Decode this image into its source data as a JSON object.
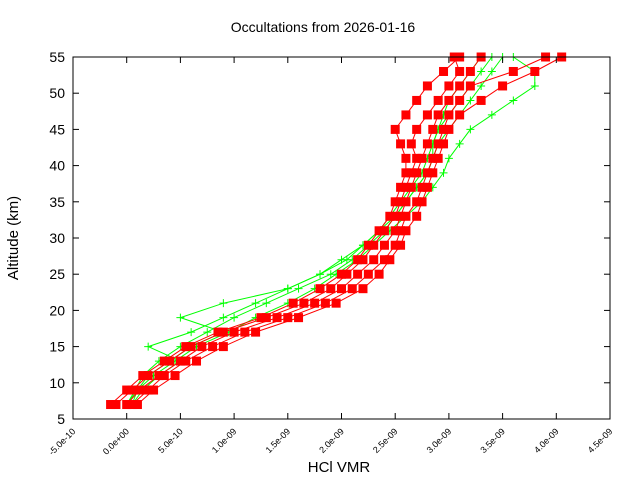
{
  "chart_data": {
    "type": "line",
    "title": "Occultations from 2026-01-16",
    "xlabel": "HCl VMR",
    "ylabel": "Altitude (km)",
    "xlim": [
      -5e-10,
      4.5e-09
    ],
    "ylim": [
      5,
      55
    ],
    "xticks": [
      "-5.0e-10",
      "0.0e+00",
      "5.0e-10",
      "1.0e-09",
      "1.5e-09",
      "2.0e-09",
      "2.5e-09",
      "3.0e-09",
      "3.5e-09",
      "4.0e-09",
      "4.5e-09"
    ],
    "xtick_values": [
      -5e-10,
      0,
      5e-10,
      1e-09,
      1.5e-09,
      2e-09,
      2.5e-09,
      3e-09,
      3.5e-09,
      4e-09,
      4.5e-09
    ],
    "yticks": [
      5,
      10,
      15,
      20,
      25,
      30,
      35,
      40,
      45,
      50,
      55
    ],
    "grid": false,
    "legend": "none",
    "altitudes": [
      7,
      9,
      11,
      13,
      15,
      17,
      19,
      21,
      23,
      25,
      27,
      29,
      31,
      33,
      35,
      37,
      39,
      41,
      43,
      45,
      47,
      49,
      51,
      53,
      55
    ],
    "series_groups": [
      {
        "color": "#00ff00",
        "marker": "plus",
        "profiles": [
          [
            0.0,
            8e-11,
            1.5e-10,
            3e-10,
            5e-10,
            7.5e-10,
            1e-09,
            1.3e-09,
            1.6e-09,
            1.9e-09,
            2.1e-09,
            2.25e-09,
            2.4e-09,
            2.5e-09,
            2.6e-09,
            2.7e-09,
            2.8e-09,
            2.85e-09,
            2.9e-09,
            3e-09,
            3.1e-09,
            3.2e-09,
            3.3e-09,
            3.4e-09,
            3.5e-09
          ],
          [
            5e-11,
            1e-10,
            2e-10,
            4e-10,
            6e-10,
            9e-10,
            5e-10,
            9e-10,
            1.5e-09,
            1.8e-09,
            2e-09,
            2.2e-09,
            2.35e-09,
            2.45e-09,
            2.55e-09,
            2.65e-09,
            2.75e-09,
            2.8e-09,
            2.85e-09,
            2.9e-09,
            3e-09,
            3.1e-09,
            3.2e-09,
            3.3e-09,
            3.4e-09
          ],
          [
            0.0,
            1e-10,
            2.5e-10,
            4.5e-10,
            6.5e-10,
            9.5e-10,
            1.2e-09,
            1.5e-09,
            1.75e-09,
            1.95e-09,
            2.15e-09,
            2.3e-09,
            2.45e-09,
            2.6e-09,
            2.75e-09,
            2.85e-09,
            2.95e-09,
            3e-09,
            3.1e-09,
            3.2e-09,
            3.4e-09,
            3.6e-09,
            3.8e-09,
            3.8e-09,
            3.6e-09
          ],
          [
            5e-11,
            1.5e-10,
            3e-10,
            5e-10,
            2e-10,
            6e-10,
            9e-10,
            1.2e-09,
            1.5e-09,
            1.8e-09,
            2.05e-09,
            2.2e-09,
            2.35e-09,
            2.5e-09,
            2.6e-09,
            2.7e-09,
            2.8e-09,
            2.85e-09,
            2.85e-09,
            2.9e-09,
            2.95e-09,
            3e-09,
            3.1e-09,
            3.2e-09,
            3.3e-09
          ]
        ]
      },
      {
        "color": "#ff0000",
        "marker": "square",
        "profiles": [
          [
            0.0,
            1.2e-10,
            3e-10,
            5e-10,
            7e-10,
            1e-09,
            1.4e-09,
            1.75e-09,
            2e-09,
            2.15e-09,
            2.3e-09,
            2.4e-09,
            2.5e-09,
            2.55e-09,
            2.6e-09,
            2.65e-09,
            2.7e-09,
            2.75e-09,
            2.8e-09,
            2.85e-09,
            2.9e-09,
            3e-09,
            3.1e-09,
            3.2e-09,
            3.3e-09
          ],
          [
            -1e-10,
            5e-11,
            2e-10,
            4e-10,
            6e-10,
            9e-10,
            1.3e-09,
            1.65e-09,
            1.9e-09,
            2.05e-09,
            2.2e-09,
            2.3e-09,
            2.4e-09,
            2.5e-09,
            2.55e-09,
            2.6e-09,
            2.65e-09,
            2.7e-09,
            2.65e-09,
            2.7e-09,
            2.8e-09,
            2.9e-09,
            3e-09,
            3.1e-09,
            3.05e-09
          ],
          [
            5e-11,
            2e-10,
            3.5e-10,
            5.5e-10,
            8e-10,
            1.1e-09,
            1.5e-09,
            1.85e-09,
            2.1e-09,
            2.25e-09,
            2.4e-09,
            2.5e-09,
            2.55e-09,
            2.6e-09,
            2.7e-09,
            2.75e-09,
            2.8e-09,
            2.85e-09,
            2.9e-09,
            2.95e-09,
            3e-09,
            3.1e-09,
            3.2e-09,
            3.6e-09,
            3.9e-09
          ],
          [
            -1.5e-10,
            0.0,
            1.5e-10,
            3.5e-10,
            5.5e-10,
            8.5e-10,
            1.25e-09,
            1.55e-09,
            1.8e-09,
            2e-09,
            2.15e-09,
            2.25e-09,
            2.35e-09,
            2.45e-09,
            2.5e-09,
            2.55e-09,
            2.6e-09,
            2.6e-09,
            2.55e-09,
            2.5e-09,
            2.6e-09,
            2.7e-09,
            2.8e-09,
            2.95e-09,
            3.1e-09
          ],
          [
            1e-10,
            2.5e-10,
            4.5e-10,
            6.5e-10,
            9e-10,
            1.2e-09,
            1.6e-09,
            1.95e-09,
            2.2e-09,
            2.35e-09,
            2.45e-09,
            2.55e-09,
            2.6e-09,
            2.7e-09,
            2.75e-09,
            2.8e-09,
            2.85e-09,
            2.9e-09,
            2.95e-09,
            3e-09,
            3.1e-09,
            3.3e-09,
            3.5e-09,
            3.8e-09,
            4.05e-09
          ]
        ]
      }
    ]
  }
}
